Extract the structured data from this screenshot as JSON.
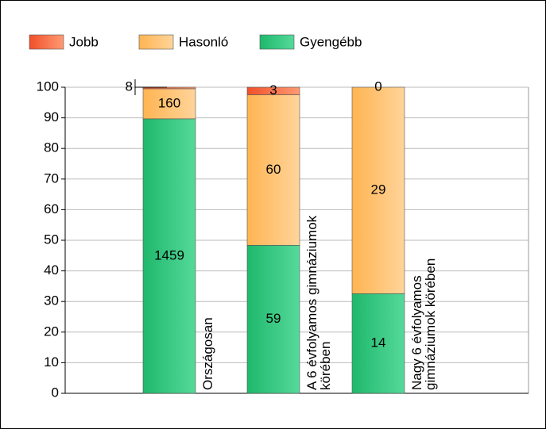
{
  "chart_data": {
    "type": "bar",
    "stacking": "percent",
    "categories": [
      "Országosan",
      "A 6 évfolyamos gimnáziumok körében",
      "Nagy 6 évfolyamos gimnáziumok körében"
    ],
    "series": [
      {
        "name": "Gyengébb",
        "color": "#2ec27a",
        "values": [
          1459,
          59,
          14
        ]
      },
      {
        "name": "Hasonló",
        "color": "#ffc46e",
        "values": [
          160,
          60,
          29
        ]
      },
      {
        "name": "Jobb",
        "color": "#f4683f",
        "values": [
          8,
          3,
          0
        ]
      }
    ],
    "legend_order": [
      2,
      1,
      0
    ],
    "ylim": [
      0,
      100
    ],
    "yticks": [
      0,
      10,
      20,
      30,
      40,
      50,
      60,
      70,
      80,
      90,
      100
    ],
    "grid": true
  }
}
